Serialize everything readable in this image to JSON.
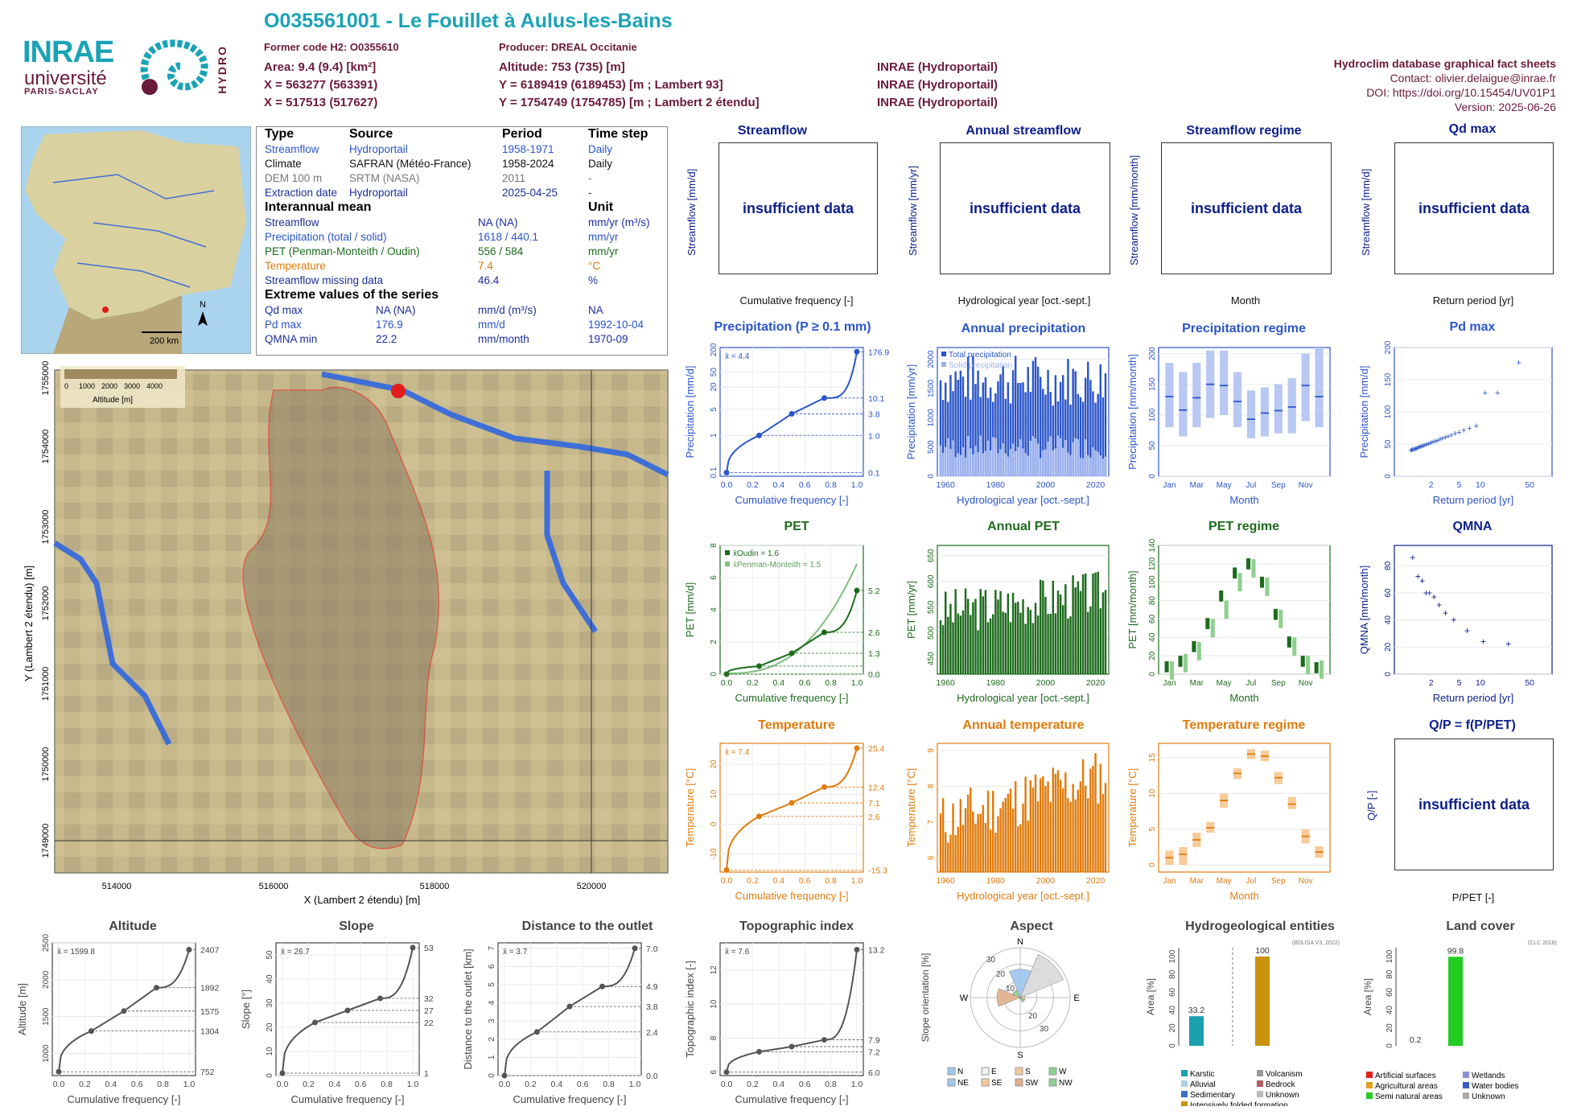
{
  "header": {
    "title": "O035561001 - Le Fouillet à Aulus-les-Bains",
    "former_code": "Former code H2: O0355610",
    "producer": "Producer: DREAL Occitanie",
    "area": "Area: 9.4 (9.4) [km²]",
    "altitude": "Altitude: 753 (735) [m]",
    "x93": "X = 563277 (563391)",
    "y93": "Y = 6189419 (6189453) [m ; Lambert 93]",
    "x2e": "X = 517513 (517627)",
    "y2e": "Y = 1754749 (1754785) [m ; Lambert 2 étendu]",
    "src1": "INRAE (Hydroportail)",
    "src2": "INRAE (Hydroportail)",
    "src3": "INRAE (Hydroportail)"
  },
  "logos": {
    "inrae": "INRAE",
    "universite": "université",
    "paris_saclay": "PARIS-SACLAY",
    "hydro": "HYDRO"
  },
  "right_info": {
    "db": "Hydroclim database graphical fact sheets",
    "contact": "Contact: olivier.delaigue@inrae.fr",
    "doi": "DOI: https://doi.org/10.15454/UV01P1",
    "version": "Version: 2025-06-26"
  },
  "overview_map": {
    "scale": "200 km",
    "north": "N"
  },
  "table": {
    "head": [
      "Type",
      "Source",
      "Period",
      "Time step"
    ],
    "rows": [
      [
        "Streamflow",
        "Hydroportail",
        "1958-1971",
        "Daily"
      ],
      [
        "Climate",
        "SAFRAN (Météo-France)",
        "1958-2024",
        "Daily"
      ],
      [
        "DEM 100 m",
        "SRTM (NASA)",
        "2011",
        "-"
      ],
      [
        "Extraction date",
        "Hydroportail",
        "2025-04-25",
        "-"
      ]
    ],
    "mean_head": "Interannual mean",
    "unit_head": "Unit",
    "mean_rows": [
      [
        "Streamflow",
        "NA (NA)",
        "mm/yr (m³/s)"
      ],
      [
        "Precipitation (total / solid)",
        "1618 / 440.1",
        "mm/yr"
      ],
      [
        "PET (Penman-Monteith / Oudin)",
        "556 / 584",
        "mm/yr"
      ],
      [
        "Temperature",
        "7.4",
        "°C"
      ],
      [
        "Streamflow missing data",
        "46.4",
        "%"
      ]
    ],
    "extreme_head": "Extreme values of the series",
    "extreme_rows": [
      [
        "Qd max",
        "NA (NA)",
        "mm/d (m³/s)",
        "NA"
      ],
      [
        "Pd max",
        "176.9",
        "mm/d",
        "1992-10-04"
      ],
      [
        "QMNA min",
        "22.2",
        "mm/month",
        "1970-09"
      ]
    ]
  },
  "dem_map": {
    "legend_title": "Altitude [m]",
    "legend_ticks": [
      "0",
      "1000",
      "2000",
      "3000",
      "4000"
    ],
    "x_ticks": [
      "514000",
      "516000",
      "518000",
      "520000"
    ],
    "y_ticks": [
      "1749000",
      "1750000",
      "1751000",
      "1752000",
      "1753000",
      "1754000",
      "1755000"
    ],
    "xlabel": "X (Lambert 2 étendu) [m]",
    "ylabel": "Y (Lambert 2 étendu) [m]"
  },
  "insufficient": "insufficient data",
  "panels": {
    "streamflow": {
      "title": "Streamflow",
      "ylabel": "Streamflow [mm/d]",
      "xlabel": "Cumulative frequency [-]"
    },
    "annual_streamflow": {
      "title": "Annual streamflow",
      "ylabel": "Streamflow [mm/yr]",
      "xlabel": "Hydrological year [oct.-sept.]"
    },
    "streamflow_regime": {
      "title": "Streamflow regime",
      "ylabel": "Streamflow [mm/month]",
      "xlabel": "Month"
    },
    "qd_max": {
      "title": "Qd max",
      "ylabel": "Streamflow [mm/d]",
      "xlabel": "Return period [yr]"
    },
    "precip": {
      "title": "Precipitation (P ≥ 0.1 mm)",
      "ylabel": "Precipitation [mm/d]",
      "xlabel": "Cumulative frequency [-]"
    },
    "annual_precip": {
      "title": "Annual precipitation",
      "ylabel": "Precipitation [mm/yr]",
      "xlabel": "Hydrological year [oct.-sept.]"
    },
    "precip_regime": {
      "title": "Precipitation regime",
      "ylabel": "Precipitation [mm/month]",
      "xlabel": "Month"
    },
    "pd_max": {
      "title": "Pd max",
      "ylabel": "Precipitation [mm/d]",
      "xlabel": "Return period [yr]"
    },
    "pet": {
      "title": "PET",
      "ylabel": "PET [mm/d]",
      "xlabel": "Cumulative frequency [-]"
    },
    "annual_pet": {
      "title": "Annual PET",
      "ylabel": "PET [mm/yr]",
      "xlabel": "Hydrological year [oct.-sept.]"
    },
    "pet_regime": {
      "title": "PET regime",
      "ylabel": "PET [mm/month]",
      "xlabel": "Month"
    },
    "qmna": {
      "title": "QMNA",
      "ylabel": "QMNA [mm/month]",
      "xlabel": "Return period [yr]"
    },
    "temp": {
      "title": "Temperature",
      "ylabel": "Temperature [°C]",
      "xlabel": "Cumulative frequency [-]"
    },
    "annual_temp": {
      "title": "Annual temperature",
      "ylabel": "Temperature [°C]",
      "xlabel": "Hydrological year [oct.-sept.]"
    },
    "temp_regime": {
      "title": "Temperature regime",
      "ylabel": "Temperature [°C]",
      "xlabel": "Month"
    },
    "qp": {
      "title": "Q/P = f(P/PET)",
      "ylabel": "Q/P [-]",
      "xlabel": "P/PET [-]"
    },
    "altitude": {
      "title": "Altitude",
      "ylabel": "Altitude [m]",
      "xlabel": "Cumulative frequency [-]"
    },
    "slope": {
      "title": "Slope",
      "ylabel": "Slope [°]",
      "xlabel": "Cumulative frequency [-]"
    },
    "distance": {
      "title": "Distance to the outlet",
      "ylabel": "Distance to the outlet [km]",
      "xlabel": "Cumulative frequency [-]"
    },
    "topo": {
      "title": "Topographic index",
      "ylabel": "Topographic index [-]",
      "xlabel": "Cumulative frequency [-]"
    },
    "aspect": {
      "title": "Aspect",
      "ylabel": "Slope orientation [%]"
    },
    "hydrogeo": {
      "title": "Hydrogeological entities",
      "ylabel": "Area [%]",
      "note": "(BDLISA V3, 2022)"
    },
    "landcover": {
      "title": "Land cover",
      "ylabel": "Area [%]",
      "note": "(CLC 2018)"
    }
  },
  "colors": {
    "precip": "#2b55c9",
    "pet": "#1d6b1d",
    "temp": "#e07b0d",
    "dark": "#0b1e8a",
    "grey": "#555555"
  },
  "chart_data": [
    {
      "id": "precip",
      "type": "line",
      "x": [
        0,
        0.25,
        0.5,
        0.75,
        1.0
      ],
      "y": [
        0.1,
        1.0,
        3.8,
        10.1,
        176.9
      ],
      "mean_label": "x̄ = 4.4",
      "right_labels": [
        "176.9",
        "10.1",
        "3.8",
        "1.0",
        "0.1"
      ],
      "yscale": "log",
      "y_ticks": [
        "0.1",
        "1",
        "5",
        "20",
        "50",
        "200"
      ]
    },
    {
      "id": "annual_precip",
      "type": "bar",
      "x_range": [
        1958,
        2024
      ],
      "ylim": [
        0,
        2200
      ],
      "series": [
        {
          "name": "Total precipitation"
        },
        {
          "name": "Solid precipitation"
        }
      ],
      "y_ticks": [
        "0",
        "500",
        "1000",
        "1500",
        "2000"
      ],
      "x_ticks": [
        "1960",
        "1980",
        "2000",
        "2020"
      ]
    },
    {
      "id": "precip_regime",
      "type": "box",
      "categories": [
        "Jan",
        "Feb",
        "Mar",
        "Apr",
        "May",
        "Jun",
        "Jul",
        "Aug",
        "Sep",
        "Oct",
        "Nov",
        "Dec"
      ],
      "median": [
        130,
        108,
        128,
        150,
        148,
        122,
        93,
        103,
        107,
        113,
        148,
        130
      ],
      "low": [
        80,
        65,
        80,
        95,
        100,
        80,
        62,
        65,
        70,
        70,
        90,
        80
      ],
      "high": [
        185,
        170,
        185,
        205,
        205,
        170,
        140,
        145,
        150,
        160,
        200,
        210
      ],
      "ylim": [
        0,
        210
      ],
      "y_ticks": [
        "0",
        "50",
        "100",
        "150",
        "200"
      ],
      "x_ticks": [
        "Jan",
        "Mar",
        "May",
        "Jul",
        "Sep",
        "Nov"
      ]
    },
    {
      "id": "pd_max",
      "type": "scatter",
      "y_ticks": [
        "0",
        "50",
        "100",
        "150",
        "200"
      ],
      "x_ticks": [
        "2",
        "5",
        "10",
        "50"
      ],
      "ylim": [
        0,
        200
      ],
      "max": 176.9
    },
    {
      "id": "pet",
      "type": "line",
      "series": [
        {
          "name": "Oudin",
          "x": [
            0,
            0.25,
            0.5,
            0.75,
            1.0
          ],
          "y": [
            0.0,
            0.5,
            1.3,
            2.6,
            5.2
          ]
        },
        {
          "name": "Penman-Monteith"
        }
      ],
      "mean_oudin": "1.6",
      "mean_pm": "1.5",
      "right_labels": [
        "5.2",
        "2.6",
        "1.3",
        "0.0"
      ],
      "y_ticks": [
        "0",
        "2",
        "4",
        "6",
        "8"
      ],
      "ylim": [
        0,
        8
      ]
    },
    {
      "id": "annual_pet",
      "type": "bar",
      "ylim": [
        420,
        670
      ],
      "y_ticks": [
        "450",
        "500",
        "550",
        "600",
        "650"
      ],
      "x_ticks": [
        "1960",
        "1980",
        "2000",
        "2020"
      ]
    },
    {
      "id": "pet_regime",
      "type": "box",
      "categories": [
        "Jan",
        "Feb",
        "Mar",
        "Apr",
        "May",
        "Jun",
        "Jul",
        "Aug",
        "Sep",
        "Oct",
        "Nov",
        "Dec"
      ],
      "oudin": [
        8,
        14,
        30,
        55,
        85,
        110,
        120,
        100,
        65,
        35,
        14,
        7
      ],
      "pm": [
        4,
        12,
        25,
        50,
        70,
        100,
        115,
        95,
        60,
        30,
        10,
        5
      ],
      "ylim": [
        0,
        140
      ],
      "y_ticks": [
        "0",
        "20",
        "40",
        "60",
        "80",
        "100",
        "120",
        "140"
      ],
      "x_ticks": [
        "Jan",
        "Mar",
        "May",
        "Jul",
        "Sep",
        "Nov"
      ]
    },
    {
      "id": "qmna",
      "type": "scatter",
      "ylim": [
        0,
        95
      ],
      "y_ticks": [
        "0",
        "20",
        "40",
        "60",
        "80"
      ],
      "x_ticks": [
        "2",
        "5",
        "10",
        "50"
      ],
      "min": 22.2
    },
    {
      "id": "temp",
      "type": "line",
      "x": [
        0,
        0.25,
        0.5,
        0.75,
        1.0
      ],
      "y": [
        -15.3,
        2.6,
        7.1,
        12.4,
        25.4
      ],
      "mean_label": "x̄ = 7.4",
      "right_labels": [
        "25.4",
        "12.4",
        "7.1",
        "2.6",
        "-15.3"
      ],
      "ylim": [
        -16,
        27
      ],
      "y_ticks": [
        "-10",
        "0",
        "10",
        "20"
      ]
    },
    {
      "id": "annual_temp",
      "type": "bar",
      "ylim": [
        5.6,
        9.2
      ],
      "y_ticks": [
        "6",
        "7",
        "8",
        "9"
      ],
      "x_ticks": [
        "1960",
        "1980",
        "2000",
        "2020"
      ]
    },
    {
      "id": "temp_regime",
      "type": "box",
      "categories": [
        "Jan",
        "Feb",
        "Mar",
        "Apr",
        "May",
        "Jun",
        "Jul",
        "Aug",
        "Sep",
        "Oct",
        "Nov",
        "Dec"
      ],
      "median": [
        1,
        1.5,
        3.5,
        5.2,
        9,
        12.8,
        15.5,
        15.2,
        12.2,
        8.5,
        4,
        1.8
      ],
      "low": [
        0,
        0,
        2.5,
        4.5,
        8,
        12,
        14.8,
        14.5,
        11.3,
        7.8,
        3,
        1
      ],
      "high": [
        2,
        2.5,
        4.5,
        6,
        10,
        13.5,
        16.2,
        16,
        13,
        9.5,
        5,
        2.6
      ],
      "ylim": [
        -1,
        17
      ],
      "y_ticks": [
        "0",
        "5",
        "10",
        "15"
      ],
      "x_ticks": [
        "Jan",
        "Mar",
        "May",
        "Jul",
        "Sep",
        "Nov"
      ]
    },
    {
      "id": "altitude",
      "type": "line",
      "x": [
        0,
        0.25,
        0.5,
        0.75,
        1.0
      ],
      "y": [
        752,
        1304,
        1575,
        1892,
        2407
      ],
      "mean_label": "x̄ = 1599.8",
      "right_labels": [
        "2407",
        "1892",
        "1575",
        "1304",
        "752"
      ],
      "ylim": [
        700,
        2500
      ],
      "y_ticks": [
        "1000",
        "1500",
        "2000",
        "2500"
      ]
    },
    {
      "id": "slope",
      "type": "line",
      "x": [
        0,
        0.25,
        0.5,
        0.75,
        1.0
      ],
      "y": [
        1,
        22,
        27,
        32,
        53
      ],
      "mean_label": "x̄ = 26.7",
      "right_labels": [
        "53",
        "32",
        "27",
        "22",
        "1"
      ],
      "ylim": [
        0,
        55
      ],
      "y_ticks": [
        "0",
        "10",
        "20",
        "30",
        "40",
        "50"
      ]
    },
    {
      "id": "distance",
      "type": "line",
      "x": [
        0,
        0.25,
        0.5,
        0.75,
        1.0
      ],
      "y": [
        0.0,
        2.4,
        3.8,
        4.9,
        7.0
      ],
      "mean_label": "x̄ = 3.7",
      "right_labels": [
        "7.0",
        "4.9",
        "3.8",
        "2.4",
        "0.0"
      ],
      "ylim": [
        0,
        7.3
      ],
      "y_ticks": [
        "0",
        "1",
        "2",
        "3",
        "4",
        "5",
        "6",
        "7"
      ]
    },
    {
      "id": "topo",
      "type": "line",
      "x": [
        0,
        0.25,
        0.5,
        0.75,
        1.0
      ],
      "y": [
        6.0,
        7.2,
        7.5,
        7.9,
        13.2
      ],
      "mean_label": "x̄ = 7.6",
      "right_labels": [
        "13.2",
        "7.9",
        "7.2",
        "6.0"
      ],
      "ylim": [
        5.8,
        13.6
      ],
      "y_ticks": [
        "6",
        "8",
        "10",
        "12"
      ]
    },
    {
      "id": "aspect",
      "type": "rose",
      "directions": [
        "N",
        "NE",
        "E",
        "SE",
        "S",
        "SW",
        "W",
        "NW"
      ],
      "rings": [
        "10",
        "20",
        "30"
      ],
      "values": [
        17,
        28,
        3,
        3,
        1,
        0,
        14,
        5
      ],
      "legend": [
        "N",
        "E",
        "S",
        "W",
        "NE",
        "SE",
        "SW",
        "NW"
      ]
    },
    {
      "id": "hydrogeo",
      "type": "bar",
      "categories": [
        "Karstic",
        "Alluvial",
        "Sedimentary",
        "Intensively folded formation",
        "Volcanism",
        "Bedrock",
        "Unknown"
      ],
      "values": [
        33.2,
        0,
        0,
        100,
        0,
        0,
        0
      ],
      "labels": [
        "33.2",
        "100"
      ],
      "y_ticks": [
        "0",
        "20",
        "40",
        "60",
        "80",
        "100"
      ],
      "legend": [
        "Karstic",
        "Alluvial",
        "Sedimentary",
        "Intensively folded formation",
        "Volcanism",
        "Bedrock",
        "Unknown"
      ]
    },
    {
      "id": "landcover",
      "type": "bar",
      "categories": [
        "Artificial surfaces",
        "Agricultural areas",
        "Semi natural areas",
        "Wetlands",
        "Water bodies",
        "Unknown"
      ],
      "values": [
        0.2,
        0,
        99.8,
        0,
        0,
        0
      ],
      "labels": [
        "0.2",
        "99.8"
      ],
      "y_ticks": [
        "0",
        "20",
        "40",
        "60",
        "80",
        "100"
      ],
      "legend": [
        "Artificial surfaces",
        "Agricultural areas",
        "Semi natural areas",
        "Wetlands",
        "Water bodies",
        "Unknown"
      ]
    }
  ]
}
